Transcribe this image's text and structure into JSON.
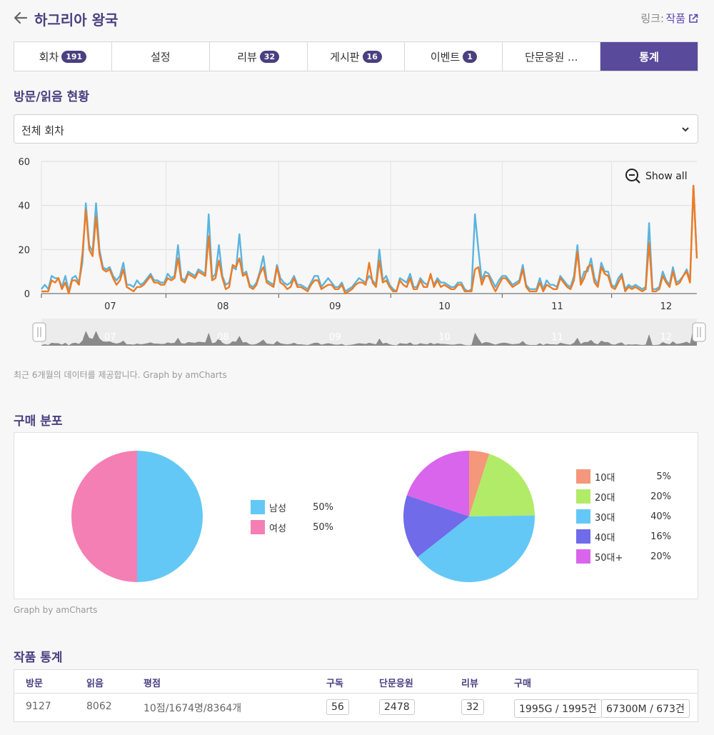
{
  "header": {
    "title": "하그리아 왕국",
    "link_label": "링크:",
    "link_work": "작품"
  },
  "tabs": [
    {
      "label": "회차",
      "badge": "191"
    },
    {
      "label": "설정",
      "badge": ""
    },
    {
      "label": "리뷰",
      "badge": "32"
    },
    {
      "label": "게시판",
      "badge": "16"
    },
    {
      "label": "이벤트",
      "badge": "1"
    },
    {
      "label": "단문응원 ...",
      "badge": ""
    },
    {
      "label": "통계",
      "badge": "",
      "active": true
    }
  ],
  "visits": {
    "section_title": "방문/읽음 현황",
    "select_value": "전체 회차",
    "show_all": "Show all",
    "caption": "최근 6개월의 데이터를 제공합니다. Graph by amCharts"
  },
  "chart_data": [
    {
      "type": "line",
      "y_ticks": [
        "0",
        "20",
        "40",
        "60"
      ],
      "ylim": [
        0,
        60
      ],
      "x_tick_labels": [
        "07",
        "08",
        "09",
        "10",
        "11",
        "12"
      ],
      "grid": true,
      "series": [
        {
          "color": "#5ab4de",
          "values": [
            2,
            4,
            2,
            8,
            7,
            7,
            3,
            8,
            1,
            7,
            8,
            5,
            14,
            41,
            22,
            19,
            41,
            20,
            12,
            11,
            12,
            8,
            6,
            8,
            14,
            4,
            4,
            3,
            6,
            4,
            5,
            7,
            9,
            6,
            6,
            5,
            5,
            9,
            7,
            8,
            22,
            7,
            6,
            10,
            9,
            8,
            11,
            10,
            9,
            36,
            7,
            9,
            22,
            8,
            4,
            5,
            12,
            11,
            27,
            9,
            10,
            4,
            3,
            5,
            10,
            17,
            6,
            5,
            4,
            13,
            7,
            5,
            4,
            5,
            8,
            4,
            4,
            3,
            2,
            5,
            8,
            8,
            3,
            5,
            7,
            5,
            3,
            3,
            5,
            1,
            2,
            3,
            5,
            7,
            6,
            5,
            8,
            6,
            4,
            20,
            6,
            8,
            4,
            2,
            1,
            7,
            6,
            5,
            9,
            3,
            3,
            7,
            5,
            4,
            8,
            4,
            7,
            5,
            5,
            4,
            3,
            3,
            5,
            5,
            2,
            1,
            2,
            36,
            20,
            6,
            10,
            9,
            6,
            3,
            6,
            8,
            8,
            6,
            4,
            5,
            6,
            13,
            4,
            2,
            2,
            2,
            7,
            2,
            6,
            4,
            4,
            3,
            8,
            6,
            4,
            3,
            8,
            22,
            5,
            10,
            10,
            16,
            7,
            4,
            14,
            10,
            10,
            4,
            3,
            7,
            9,
            2,
            4,
            3,
            4,
            3,
            2,
            3,
            32,
            2,
            2,
            3,
            10,
            6,
            4,
            12,
            5,
            6,
            8,
            11,
            6,
            49,
            16
          ]
        },
        {
          "color": "#f07a22",
          "values": [
            1,
            1,
            1,
            6,
            5,
            7,
            2,
            5,
            0,
            6,
            6,
            4,
            18,
            38,
            20,
            17,
            35,
            18,
            11,
            10,
            11,
            7,
            4,
            6,
            11,
            3,
            2,
            1,
            3,
            3,
            4,
            6,
            8,
            5,
            5,
            4,
            4,
            7,
            6,
            7,
            16,
            6,
            5,
            9,
            8,
            7,
            10,
            9,
            8,
            26,
            6,
            7,
            15,
            7,
            2,
            3,
            13,
            12,
            16,
            8,
            9,
            3,
            2,
            4,
            9,
            12,
            5,
            4,
            3,
            12,
            5,
            4,
            2,
            3,
            7,
            3,
            3,
            2,
            1,
            4,
            6,
            6,
            2,
            3,
            4,
            4,
            2,
            2,
            4,
            0,
            1,
            2,
            4,
            5,
            5,
            4,
            14,
            5,
            3,
            15,
            5,
            6,
            3,
            1,
            1,
            6,
            4,
            3,
            7,
            2,
            2,
            6,
            3,
            3,
            9,
            3,
            6,
            3,
            4,
            3,
            2,
            2,
            4,
            4,
            1,
            1,
            1,
            11,
            12,
            4,
            8,
            8,
            4,
            1,
            4,
            7,
            7,
            5,
            3,
            4,
            5,
            11,
            3,
            1,
            1,
            1,
            5,
            1,
            4,
            3,
            2,
            2,
            7,
            5,
            3,
            2,
            6,
            19,
            4,
            7,
            12,
            13,
            5,
            3,
            12,
            9,
            8,
            3,
            2,
            5,
            8,
            1,
            3,
            2,
            3,
            2,
            1,
            2,
            23,
            1,
            1,
            2,
            8,
            5,
            3,
            10,
            4,
            5,
            8,
            10,
            5,
            49,
            16
          ]
        }
      ]
    },
    {
      "type": "pie",
      "slices": [
        {
          "label": "남성",
          "value": 50,
          "display": "50%",
          "color": "#63c8f5"
        },
        {
          "label": "여성",
          "value": 50,
          "display": "50%",
          "color": "#f47fb4"
        }
      ]
    },
    {
      "type": "pie",
      "slices": [
        {
          "label": "10대",
          "value": 5,
          "display": "5%",
          "color": "#f4977a"
        },
        {
          "label": "20대",
          "value": 20,
          "display": "20%",
          "color": "#b2eb68"
        },
        {
          "label": "30대",
          "value": 40,
          "display": "40%",
          "color": "#63c8f5"
        },
        {
          "label": "40대",
          "value": 16,
          "display": "16%",
          "color": "#6f6be9"
        },
        {
          "label": "50대+",
          "value": 20,
          "display": "20%",
          "color": "#d965ec"
        }
      ]
    }
  ],
  "purchase": {
    "section_title": "구매 분포",
    "caption": "Graph by amCharts"
  },
  "stats": {
    "section_title": "작품 통계",
    "headers": [
      "방문",
      "읽음",
      "평점",
      "구독",
      "단문응원",
      "리뷰",
      "구매"
    ],
    "values": {
      "visit": "9127",
      "read": "8062",
      "rating": "10점/1674명/8364개",
      "subscribe": "56",
      "cheer": "2478",
      "review": "32",
      "purchase_g": "1995G / 1995건",
      "purchase_m": "67300M / 673건"
    }
  }
}
